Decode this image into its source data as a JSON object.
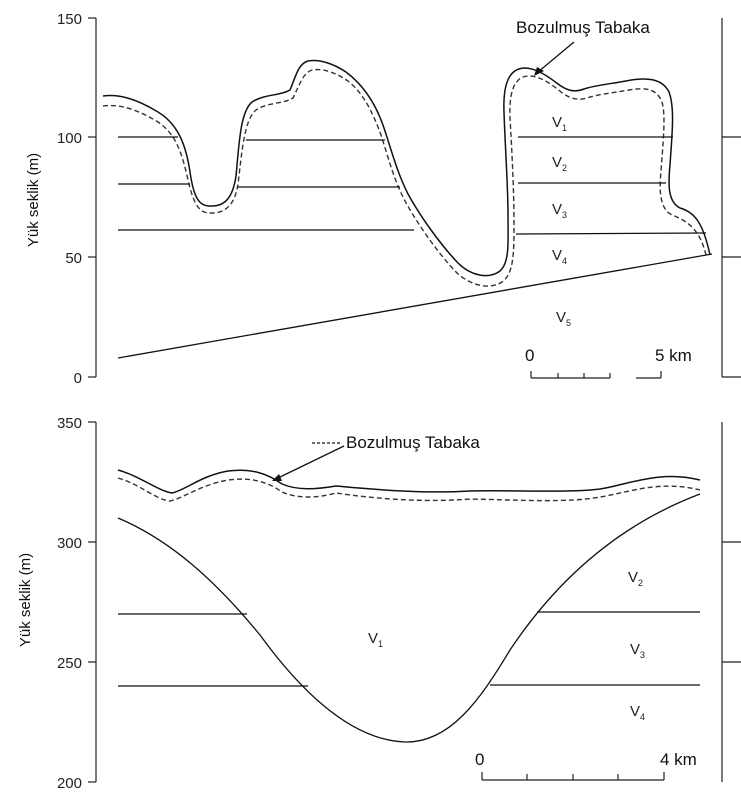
{
  "top_panel": {
    "ylabel": "Yük seklik (m)",
    "yticks": [
      "150",
      "100",
      "50",
      "0"
    ],
    "annotation": "Bozulmuş Tabaka",
    "zones": [
      {
        "letter": "V",
        "sub": "1"
      },
      {
        "letter": "V",
        "sub": "2"
      },
      {
        "letter": "V",
        "sub": "3"
      },
      {
        "letter": "V",
        "sub": "4"
      },
      {
        "letter": "V",
        "sub": "5"
      }
    ],
    "scale": {
      "start": "0",
      "end": "5 km"
    }
  },
  "bottom_panel": {
    "ylabel": "Yük seklik (m)",
    "yticks": [
      "350",
      "300",
      "250",
      "200"
    ],
    "annotation": "Bozulmuş Tabaka",
    "zones": [
      {
        "letter": "V",
        "sub": "1"
      },
      {
        "letter": "V",
        "sub": "2"
      },
      {
        "letter": "V",
        "sub": "3"
      },
      {
        "letter": "V",
        "sub": "4"
      }
    ],
    "scale": {
      "start": "0",
      "end": "4 km"
    }
  }
}
